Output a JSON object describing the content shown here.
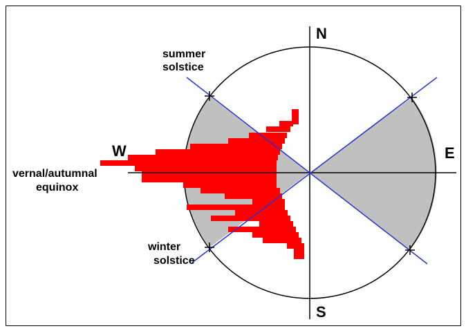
{
  "compass": {
    "north": "N",
    "south": "S",
    "east": "E",
    "west": "W"
  },
  "labels": {
    "summer_solstice": [
      "summer",
      "solstice"
    ],
    "equinox": [
      "vernal/autumnal",
      "equinox"
    ],
    "winter_solstice": [
      "winter",
      "solstice"
    ]
  }
}
